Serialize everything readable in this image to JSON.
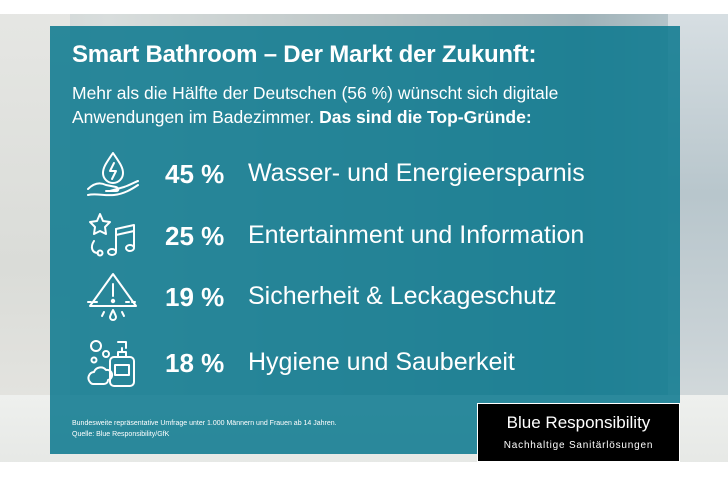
{
  "headline": "Smart Bathroom – Der Markt der Zukunft:",
  "intro": {
    "text": "Mehr als die Hälfte der Deutschen (56 %) wünscht sich digitale Anwendungen im Badezimmer. ",
    "bold": "Das sind die Top-Gründe:"
  },
  "reasons": [
    {
      "percent": "45 %",
      "label": "Wasser- und Energieersparnis",
      "icon": "water-drop-hand-icon"
    },
    {
      "percent": "25 %",
      "label": "Entertainment und Information",
      "icon": "star-music-note-icon"
    },
    {
      "percent": "19 %",
      "label": "Sicherheit & Leckageschutz",
      "icon": "warning-leak-icon"
    },
    {
      "percent": "18 %",
      "label": "Hygiene und Sauberkeit",
      "icon": "soap-bubbles-icon"
    }
  ],
  "footnote": {
    "line1": "Bundesweite repräsentative Umfrage unter 1.000 Männern und Frauen ab 14 Jahren.",
    "line2": "Quelle: Blue Responsibility/GfK"
  },
  "brand": {
    "name": "Blue Responsibility",
    "tagline": "Nachhaltige Sanitärlösungen"
  },
  "colors": {
    "panel": "#0a788e",
    "text": "#ffffff",
    "brand_box": "#000000"
  }
}
